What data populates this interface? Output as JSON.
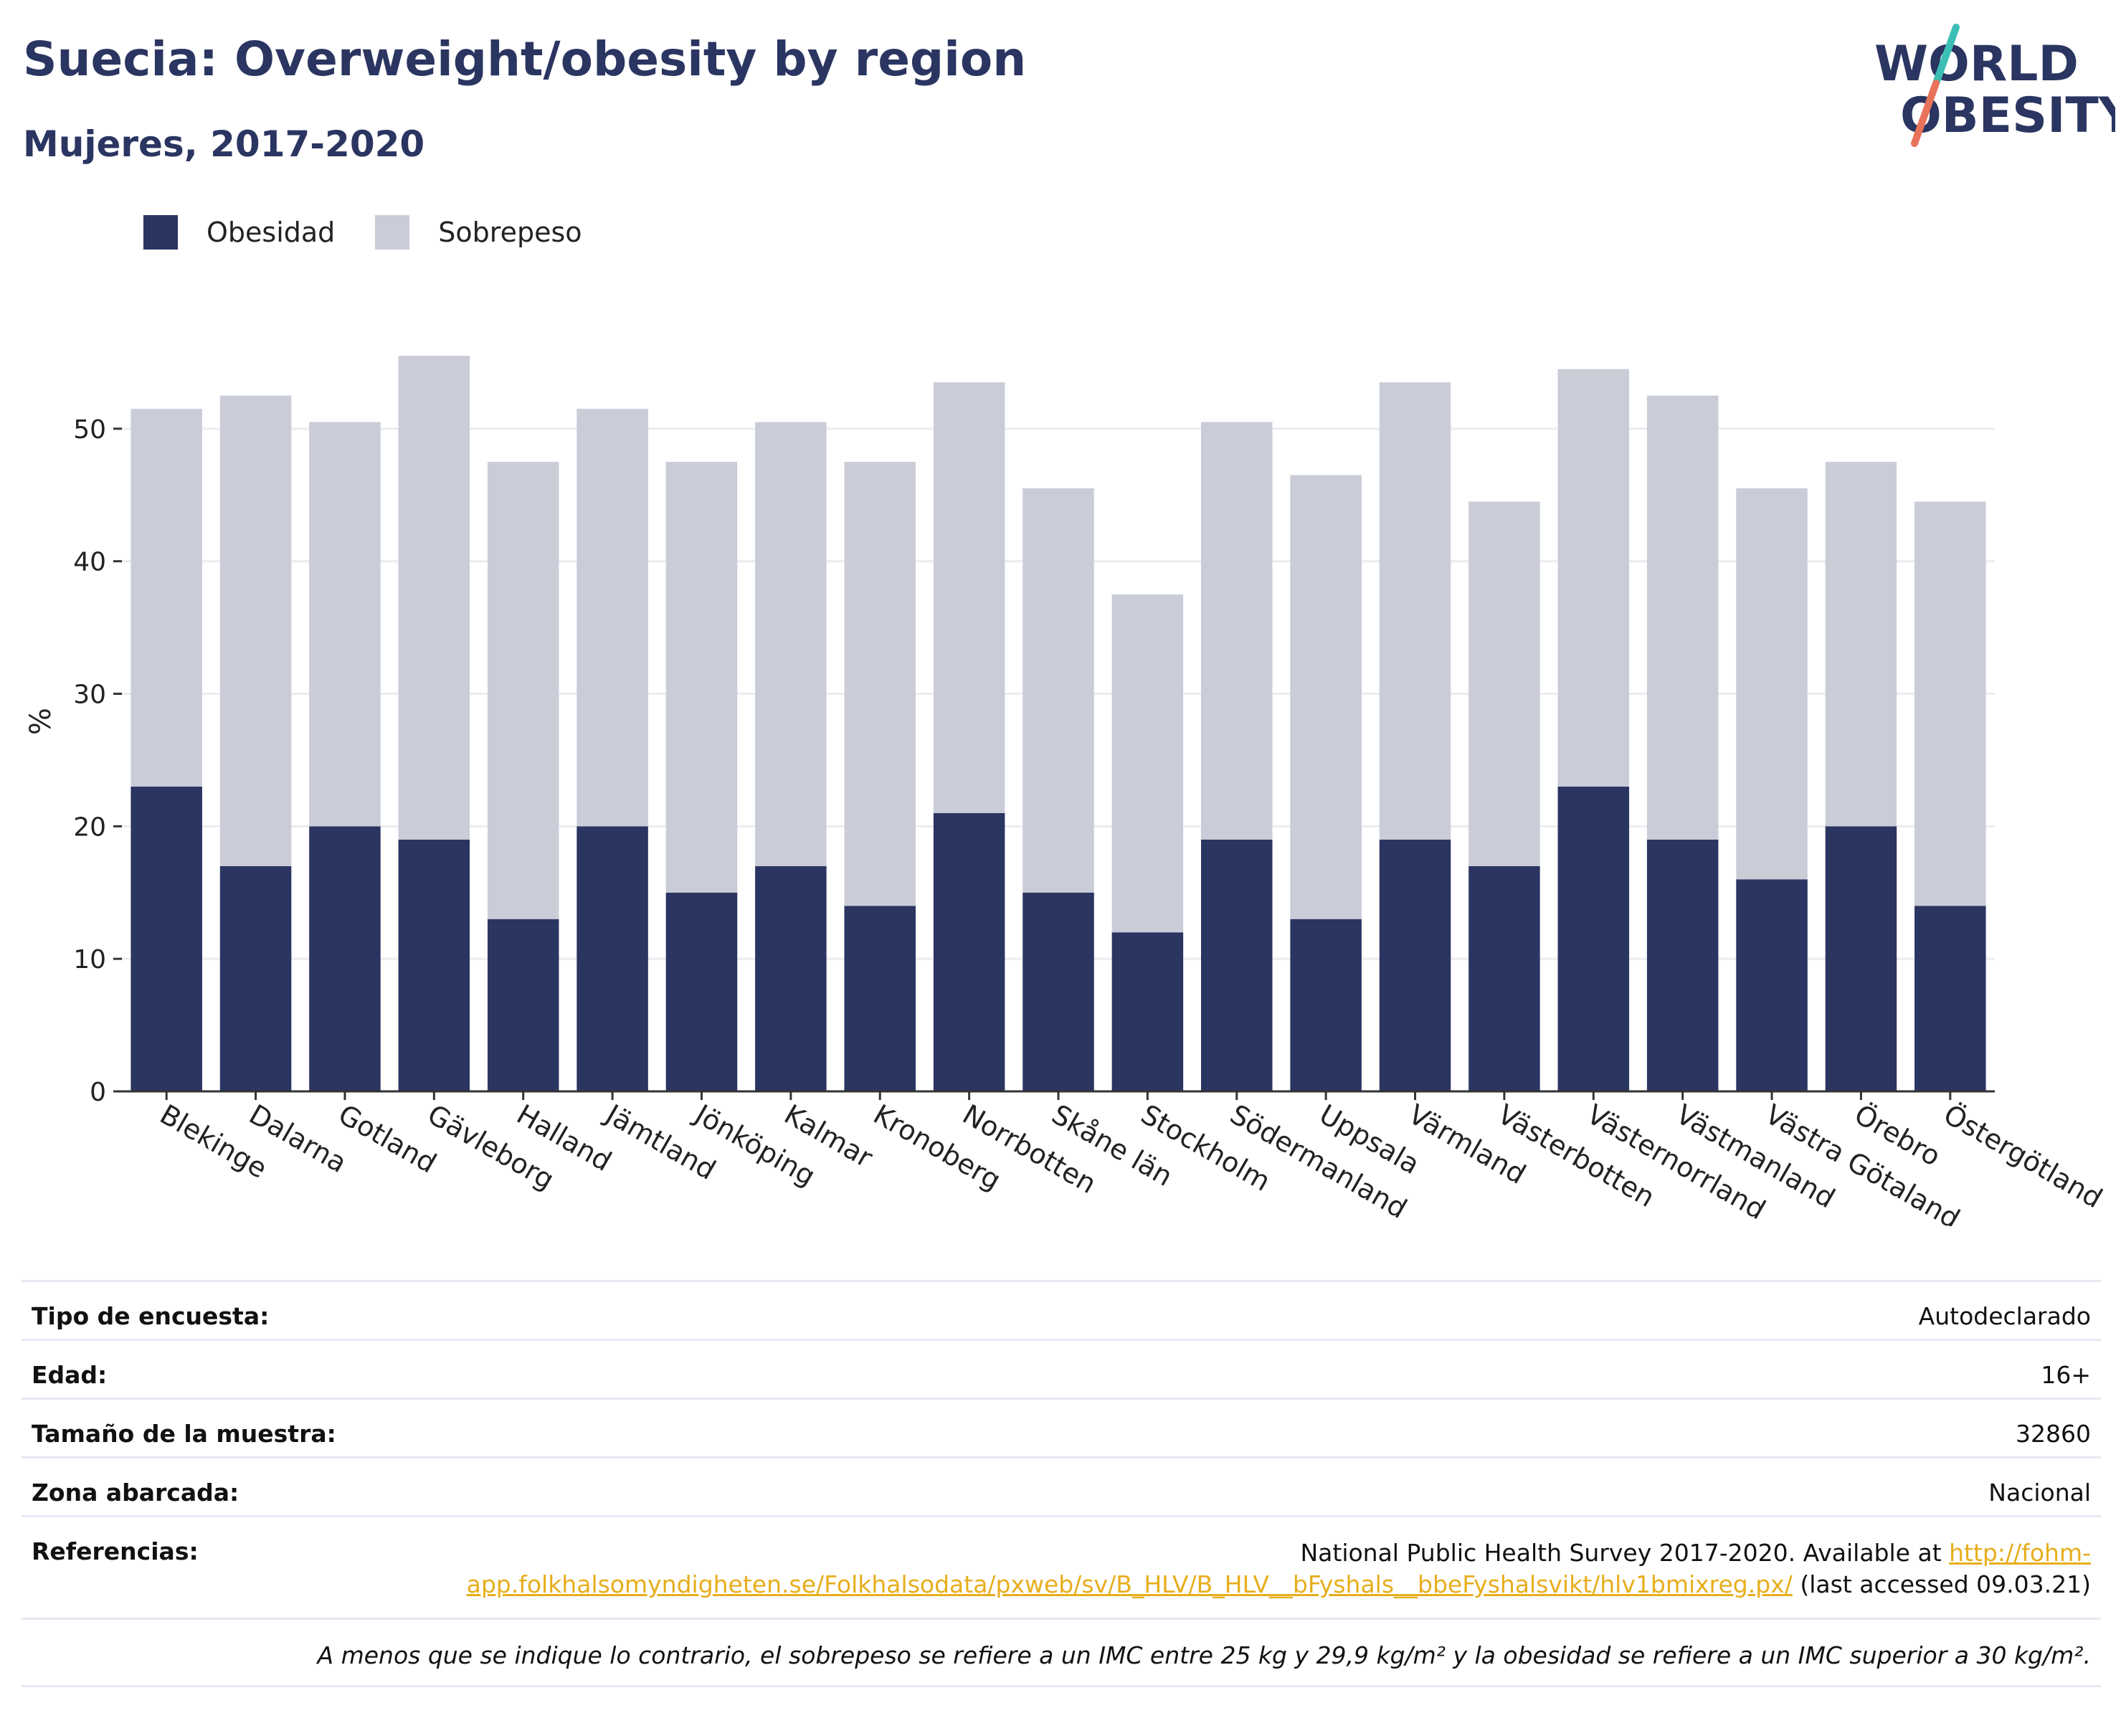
{
  "header": {
    "title": "Suecia: Overweight/obesity by region",
    "subtitle": "Mujeres, 2017-2020"
  },
  "logo": {
    "line1": "WORLD",
    "line2": "OBESITY",
    "accent_colors": [
      "#3bbfb5",
      "#e8735a"
    ]
  },
  "legend": [
    {
      "label": "Obesidad",
      "color": "#2b3561"
    },
    {
      "label": "Sobrepeso",
      "color": "#caccd8"
    }
  ],
  "chart_data": {
    "type": "bar",
    "stacked": true,
    "title": "Suecia: Overweight/obesity by region",
    "subtitle": "Mujeres, 2017-2020",
    "xlabel": "",
    "ylabel": "%",
    "ylim": [
      0,
      58
    ],
    "yticks": [
      0,
      10,
      20,
      30,
      40,
      50
    ],
    "grid": true,
    "legend_position": "top-left",
    "categories": [
      "Blekinge",
      "Dalarna",
      "Gotland",
      "Gävleborg",
      "Halland",
      "Jämtland",
      "Jönköping",
      "Kalmar",
      "Kronoberg",
      "Norrbotten",
      "Skåne län",
      "Stockholm",
      "Södermanland",
      "Uppsala",
      "Värmland",
      "Västerbotten",
      "Västernorrland",
      "Västmanland",
      "Västra Götaland",
      "Örebro",
      "Östergötland"
    ],
    "series": [
      {
        "name": "Obesidad",
        "color": "#2b3561",
        "values": [
          23,
          17,
          20,
          19,
          13,
          20,
          15,
          17,
          14,
          21,
          15,
          12,
          19,
          13,
          19,
          17,
          23,
          19,
          16,
          20,
          14
        ]
      },
      {
        "name": "Sobrepeso",
        "color": "#caccd8",
        "values": [
          28.5,
          35.5,
          30.5,
          36.5,
          34.5,
          31.5,
          32.5,
          33.5,
          33.5,
          32.5,
          30.5,
          25.5,
          31.5,
          33.5,
          34.5,
          27.5,
          31.5,
          33.5,
          29.5,
          27.5,
          30.5
        ]
      }
    ]
  },
  "meta": {
    "rows": [
      {
        "label": "Tipo de encuesta:",
        "value": "Autodeclarado"
      },
      {
        "label": "Edad:",
        "value": "16+"
      },
      {
        "label": "Tamaño de la muestra:",
        "value": "32860"
      },
      {
        "label": "Zona abarcada:",
        "value": "Nacional"
      }
    ],
    "references": {
      "label": "Referencias:",
      "text_before": "National Public Health Survey 2017-2020. Available at ",
      "link": "http://fohm-app.folkhalsomyndigheten.se/Folkhalsodata/pxweb/sv/B_HLV/B_HLV__bFyshals__bbeFyshalsvikt/hlv1bmixreg.px/",
      "text_after": " (last accessed 09.03.21)"
    },
    "note": "A menos que se indique lo contrario, el sobrepeso se refiere a un IMC entre 25 kg y 29,9 kg/m² y la obesidad se refiere a un IMC superior a 30 kg/m²."
  }
}
